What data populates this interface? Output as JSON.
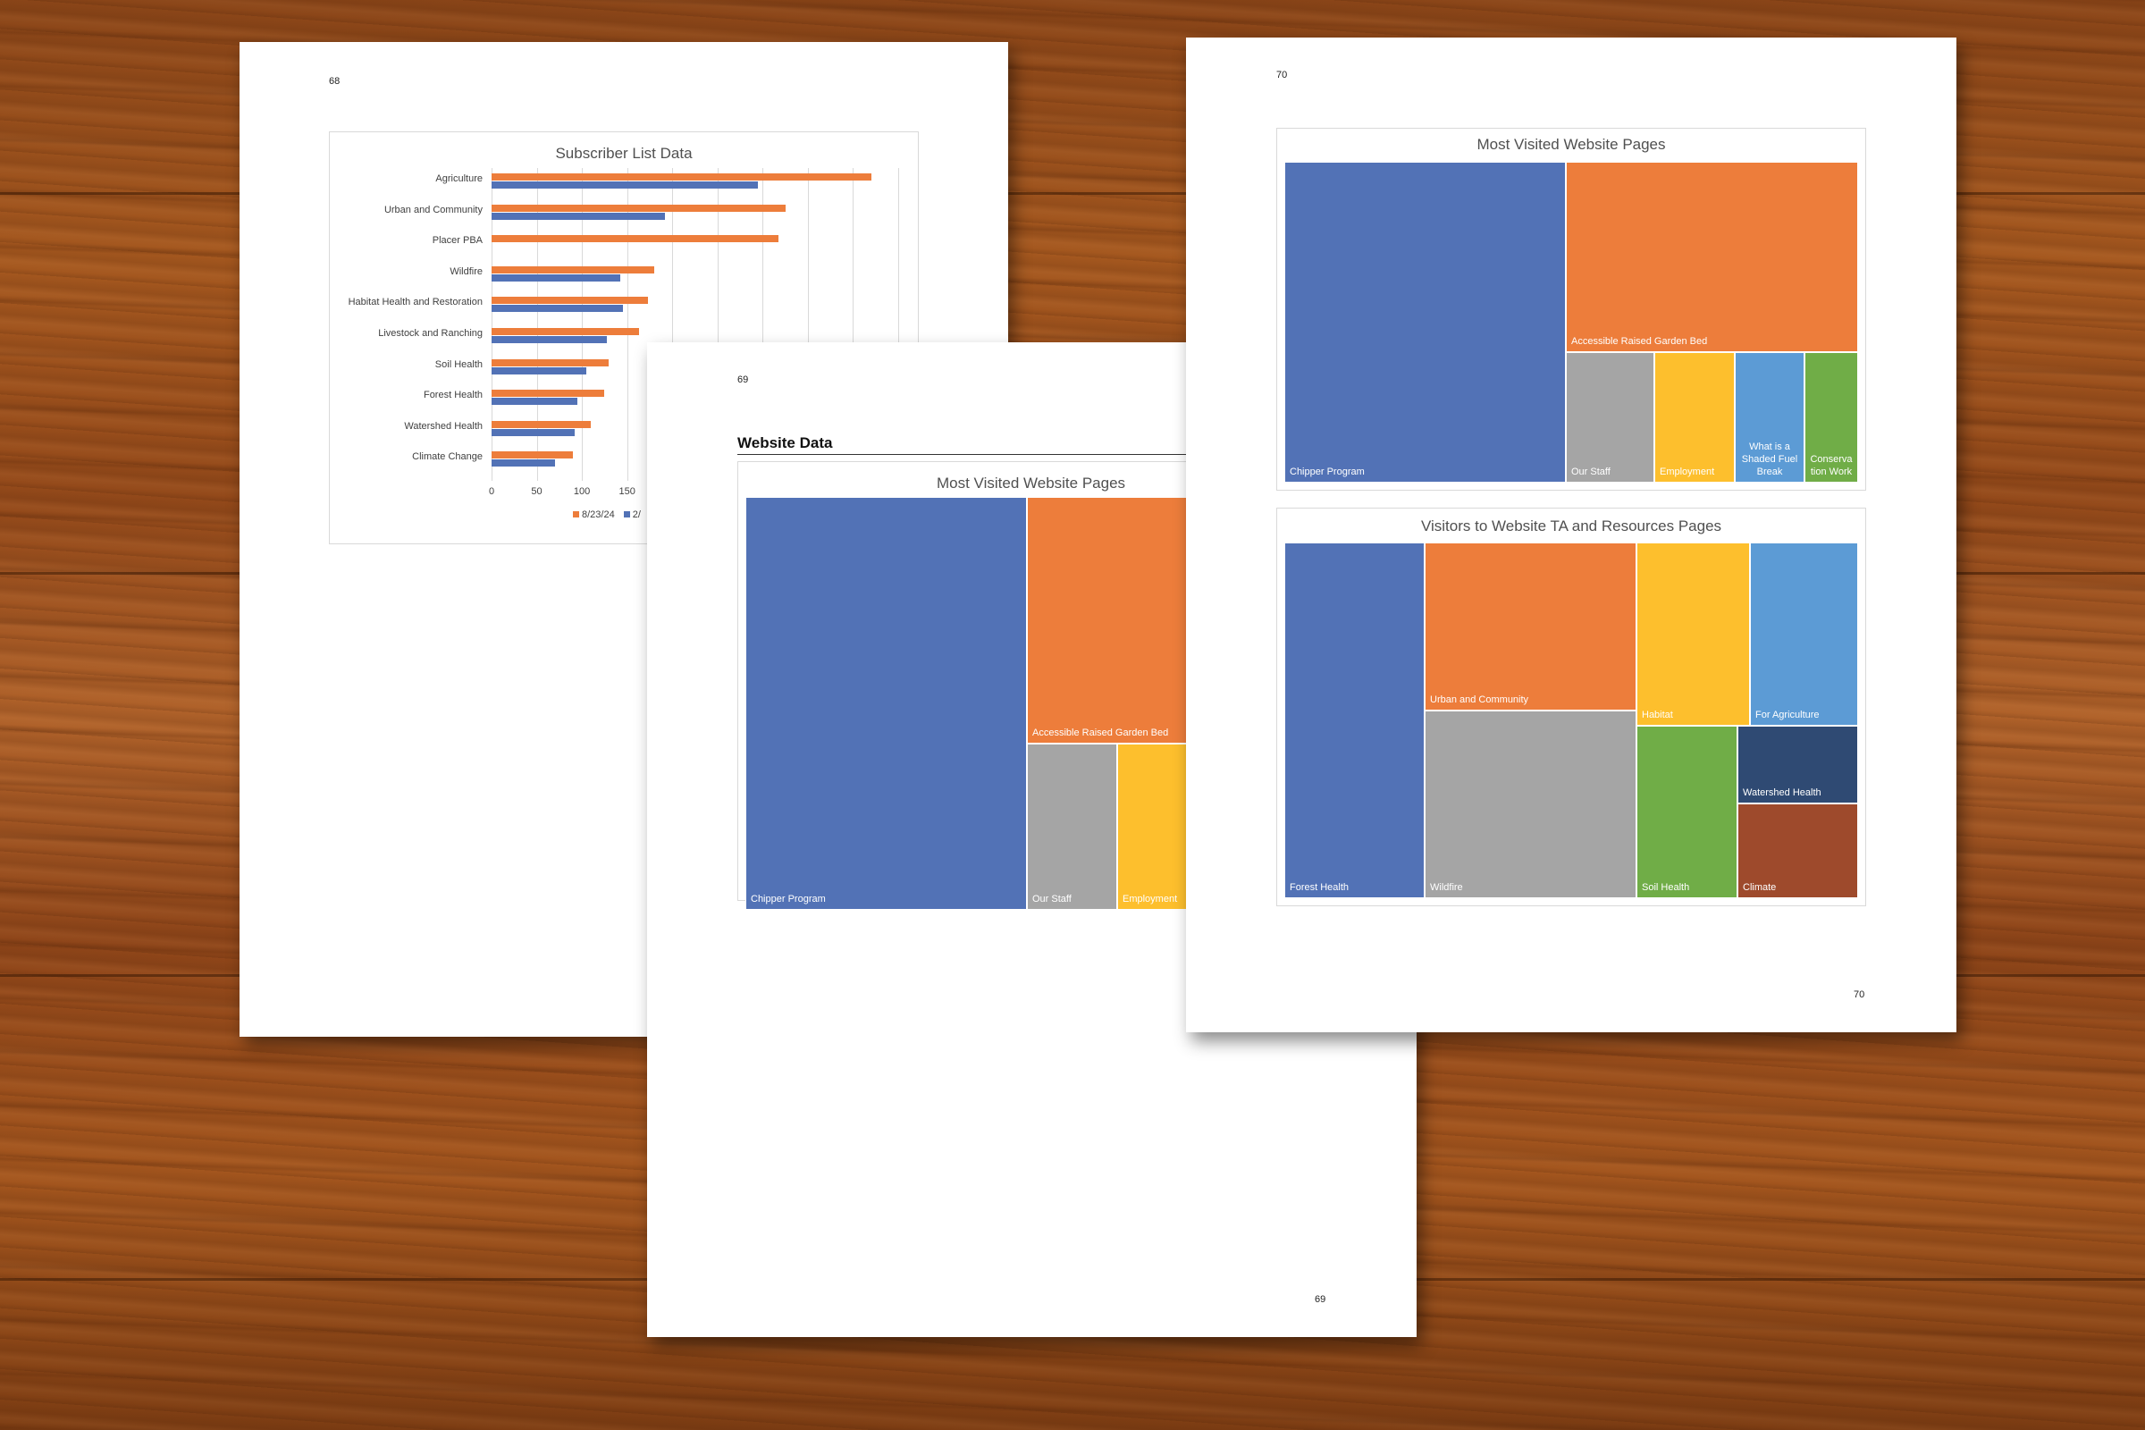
{
  "colors": {
    "blue": "#5272b6",
    "orange": "#ed7d3b",
    "gray": "#a5a5a5",
    "yellow": "#fdbf2d",
    "lightblue": "#5c9bd5",
    "green": "#70ad47",
    "navy": "#2f4a73",
    "brown": "#9e4a2c"
  },
  "page68": {
    "page_number": "68",
    "chart_data": {
      "type": "bar",
      "title": "Subscriber List Data",
      "categories": [
        "Agriculture",
        "Urban  and Community",
        "Placer PBA",
        "Wildfire",
        "Habitat Health and Restoration",
        "Livestock and Ranching",
        "Soil Health",
        "Forest Health",
        "Watershed Health",
        "Climate Change"
      ],
      "series": [
        {
          "name": "8/23/24",
          "color": "#ed7d3b",
          "values": [
            420,
            325,
            317,
            180,
            173,
            163,
            130,
            125,
            110,
            90
          ]
        },
        {
          "name": "2/",
          "color": "#5272b6",
          "values": [
            295,
            192,
            0,
            142,
            145,
            128,
            105,
            95,
            92,
            70
          ]
        }
      ],
      "xticks": [
        "0",
        "50",
        "100",
        "150"
      ],
      "xlim": [
        0,
        450
      ],
      "legend_position": "bottom"
    }
  },
  "page69": {
    "page_number": "69",
    "footer_number": "69",
    "section_heading": "Website Data",
    "chart_title": "Most Visited Website Pages",
    "tiles": [
      "Chipper Program",
      "Accessible Raised Garden Bed",
      "Our Staff",
      "Employment"
    ]
  },
  "page70": {
    "page_number": "70",
    "footer_number": "70",
    "chart1": {
      "title": "Most Visited Website Pages",
      "tiles": [
        "Chipper Program",
        "Accessible Raised Garden Bed",
        "Our Staff",
        "Employment",
        "What is a Shaded Fuel Break",
        "Conserva tion Work"
      ]
    },
    "chart2": {
      "title": "Visitors to Website TA and Resources Pages",
      "tiles": [
        "Forest Health",
        "Urban and Community",
        "Wildfire",
        "Habitat",
        "For Agriculture",
        "Soil Health",
        "Watershed Health",
        "Climate"
      ]
    }
  }
}
